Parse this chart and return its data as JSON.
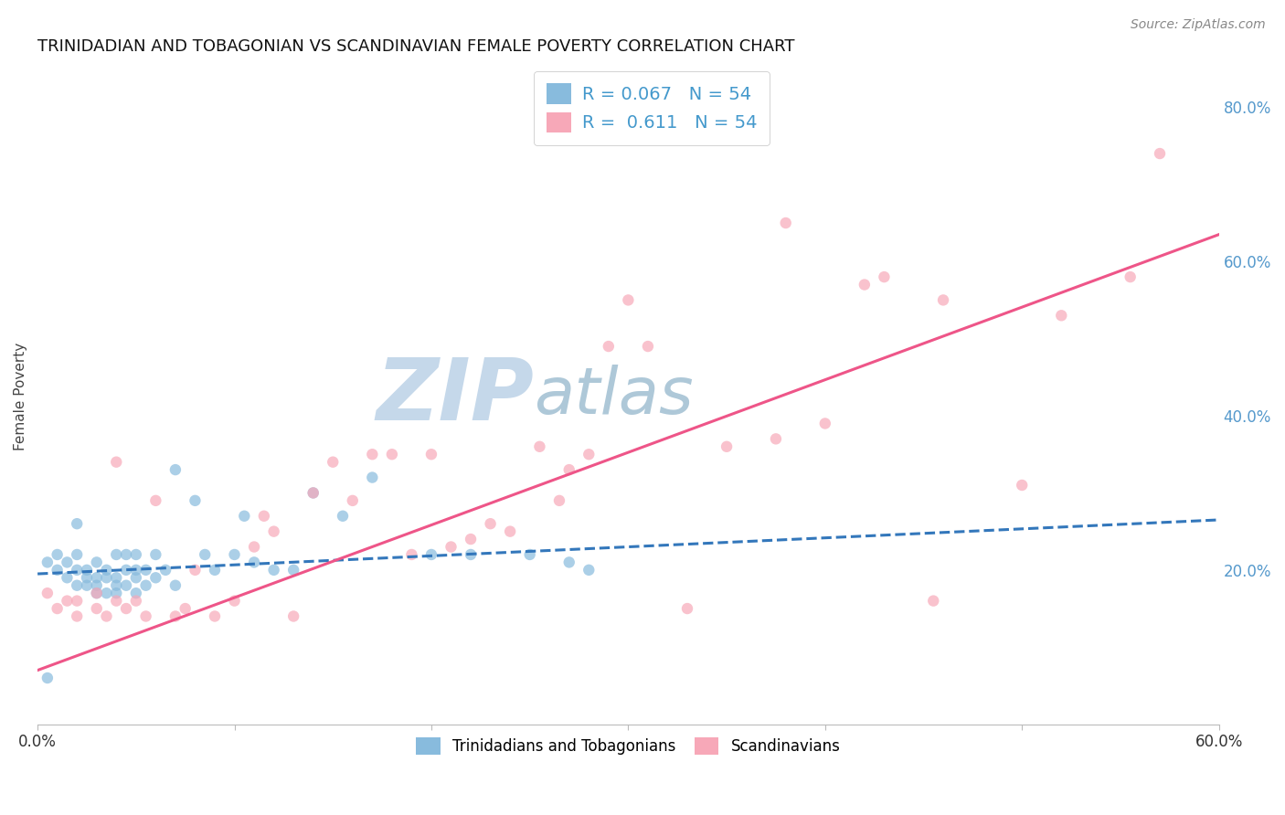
{
  "title": "TRINIDADIAN AND TOBAGONIAN VS SCANDINAVIAN FEMALE POVERTY CORRELATION CHART",
  "source": "Source: ZipAtlas.com",
  "ylabel": "Female Poverty",
  "xlim": [
    0.0,
    0.6
  ],
  "ylim": [
    0.0,
    0.85
  ],
  "xtick_vals": [
    0.0,
    0.1,
    0.2,
    0.3,
    0.4,
    0.5,
    0.6
  ],
  "xtick_labels": [
    "0.0%",
    "",
    "",
    "",
    "",
    "",
    "60.0%"
  ],
  "yticks_right": [
    0.2,
    0.4,
    0.6,
    0.8
  ],
  "ytick_labels_right": [
    "20.0%",
    "40.0%",
    "60.0%",
    "80.0%"
  ],
  "blue_color": "#88bbdd",
  "pink_color": "#f7a8b8",
  "blue_line_color": "#3377bb",
  "pink_line_color": "#ee5588",
  "right_axis_color": "#5599cc",
  "watermark_zip_color": "#c5d8ea",
  "watermark_atlas_color": "#aec8d8",
  "legend_color": "#4499cc",
  "R_blue": 0.067,
  "N_blue": 54,
  "R_pink": 0.611,
  "N_pink": 54,
  "blue_scatter_x": [
    0.005,
    0.01,
    0.01,
    0.015,
    0.015,
    0.02,
    0.02,
    0.02,
    0.025,
    0.025,
    0.025,
    0.03,
    0.03,
    0.03,
    0.03,
    0.035,
    0.035,
    0.035,
    0.04,
    0.04,
    0.04,
    0.04,
    0.045,
    0.045,
    0.045,
    0.05,
    0.05,
    0.05,
    0.05,
    0.055,
    0.055,
    0.06,
    0.06,
    0.065,
    0.07,
    0.07,
    0.08,
    0.085,
    0.09,
    0.1,
    0.105,
    0.11,
    0.12,
    0.13,
    0.14,
    0.155,
    0.17,
    0.2,
    0.22,
    0.27,
    0.28,
    0.005,
    0.02,
    0.25
  ],
  "blue_scatter_y": [
    0.21,
    0.2,
    0.22,
    0.19,
    0.21,
    0.18,
    0.2,
    0.22,
    0.18,
    0.19,
    0.2,
    0.17,
    0.18,
    0.19,
    0.21,
    0.17,
    0.19,
    0.2,
    0.17,
    0.18,
    0.19,
    0.22,
    0.18,
    0.2,
    0.22,
    0.17,
    0.19,
    0.2,
    0.22,
    0.18,
    0.2,
    0.19,
    0.22,
    0.2,
    0.18,
    0.33,
    0.29,
    0.22,
    0.2,
    0.22,
    0.27,
    0.21,
    0.2,
    0.2,
    0.3,
    0.27,
    0.32,
    0.22,
    0.22,
    0.21,
    0.2,
    0.06,
    0.26,
    0.22
  ],
  "pink_scatter_x": [
    0.005,
    0.01,
    0.015,
    0.02,
    0.02,
    0.03,
    0.03,
    0.035,
    0.04,
    0.04,
    0.045,
    0.05,
    0.055,
    0.06,
    0.07,
    0.075,
    0.08,
    0.09,
    0.1,
    0.11,
    0.115,
    0.12,
    0.13,
    0.14,
    0.15,
    0.16,
    0.17,
    0.18,
    0.19,
    0.2,
    0.21,
    0.22,
    0.23,
    0.24,
    0.255,
    0.265,
    0.27,
    0.28,
    0.29,
    0.3,
    0.31,
    0.33,
    0.35,
    0.375,
    0.38,
    0.4,
    0.42,
    0.43,
    0.455,
    0.46,
    0.5,
    0.52,
    0.555,
    0.57
  ],
  "pink_scatter_y": [
    0.17,
    0.15,
    0.16,
    0.14,
    0.16,
    0.15,
    0.17,
    0.14,
    0.16,
    0.34,
    0.15,
    0.16,
    0.14,
    0.29,
    0.14,
    0.15,
    0.2,
    0.14,
    0.16,
    0.23,
    0.27,
    0.25,
    0.14,
    0.3,
    0.34,
    0.29,
    0.35,
    0.35,
    0.22,
    0.35,
    0.23,
    0.24,
    0.26,
    0.25,
    0.36,
    0.29,
    0.33,
    0.35,
    0.49,
    0.55,
    0.49,
    0.15,
    0.36,
    0.37,
    0.65,
    0.39,
    0.57,
    0.58,
    0.16,
    0.55,
    0.31,
    0.53,
    0.58,
    0.74
  ],
  "blue_trend_x": [
    0.0,
    0.6
  ],
  "blue_trend_y": [
    0.195,
    0.265
  ],
  "pink_trend_x": [
    0.0,
    0.6
  ],
  "pink_trend_y": [
    0.07,
    0.635
  ],
  "background_color": "#ffffff",
  "grid_color": "#cccccc",
  "scatter_alpha": 0.7,
  "scatter_size": 80
}
